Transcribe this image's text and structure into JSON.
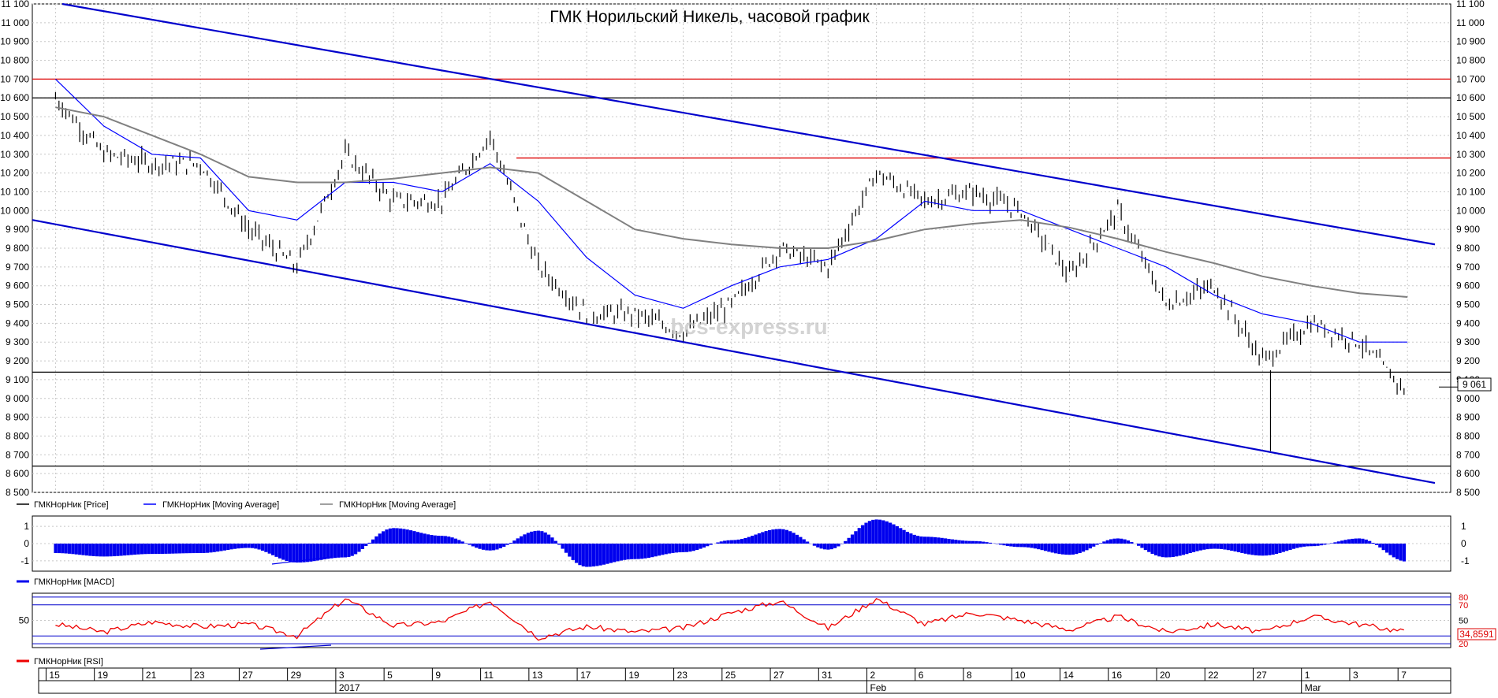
{
  "title": "ГМК Норильский Никель, часовой график",
  "watermark": "bcs-express.ru",
  "colors": {
    "price": "#000000",
    "ma_fast": "#0000ff",
    "ma_slow": "#808080",
    "channel": "#0000cc",
    "resistance": "#dd0000",
    "support": "#000000",
    "macd": "#0000ee",
    "rsi": "#ee0000",
    "rsi_levels": "#0000cc",
    "grid": "#c8c8c8",
    "frame": "#000000"
  },
  "price_panel": {
    "legend": [
      {
        "label": "ГМКНорНик [Price]",
        "color": "#000000"
      },
      {
        "label": "ГМКНорНик [Moving Average]",
        "color": "#0000ff"
      },
      {
        "label": "ГМКНорНик [Moving Average]",
        "color": "#808080"
      }
    ],
    "last_price_label": "9 061"
  },
  "macd_panel": {
    "legend": "ГМКНорНик [MACD]",
    "ticks": [
      "1",
      "0",
      "-1"
    ]
  },
  "rsi_panel": {
    "legend": "ГМКНорНик [RSI]",
    "ticks_left": [
      "50"
    ],
    "ticks_right": [
      "80",
      "70",
      "50",
      "30",
      "20"
    ],
    "last_value_label": "34,8591"
  },
  "date_axis": {
    "days": [
      "15",
      "19",
      "21",
      "23",
      "27",
      "29",
      "3",
      "5",
      "9",
      "11",
      "13",
      "17",
      "19",
      "23",
      "25",
      "27",
      "31",
      "2",
      "6",
      "8",
      "10",
      "14",
      "16",
      "20",
      "22",
      "27",
      "1",
      "3",
      "7"
    ],
    "months": [
      "2017",
      "Feb",
      "Mar"
    ]
  },
  "chart_data": [
    {
      "type": "line",
      "title": "ГМК Норильский Никель, часовой график",
      "ylim": [
        8500,
        11100
      ],
      "y_ticks": [
        8500,
        8600,
        8700,
        8800,
        8900,
        9000,
        9100,
        9200,
        9300,
        9400,
        9500,
        9600,
        9700,
        9800,
        9900,
        10000,
        10100,
        10200,
        10300,
        10400,
        10500,
        10600,
        10700,
        10800,
        10900,
        11000,
        11100
      ],
      "x_ticks": [
        "15",
        "19",
        "21",
        "23",
        "27",
        "29",
        "3",
        "5",
        "9",
        "11",
        "13",
        "17",
        "19",
        "23",
        "25",
        "27",
        "31",
        "2",
        "6",
        "8",
        "10",
        "14",
        "16",
        "20",
        "22",
        "27",
        "1",
        "3",
        "7"
      ],
      "grid": true,
      "legend_position": "bottom-left",
      "series": [
        {
          "name": "ГМКНорНик [Price]",
          "x": [
            "15",
            "19",
            "21",
            "23",
            "27",
            "29",
            "3",
            "5",
            "9",
            "11",
            "13",
            "17",
            "19",
            "23",
            "25",
            "27",
            "31",
            "2",
            "6",
            "8",
            "10",
            "14",
            "16",
            "20",
            "22",
            "27",
            "1",
            "3",
            "7"
          ],
          "values": [
            10600,
            10300,
            10250,
            10250,
            9900,
            9700,
            10300,
            10050,
            10050,
            10400,
            9700,
            9450,
            9450,
            9350,
            9500,
            9800,
            9700,
            10200,
            10050,
            10100,
            10000,
            9650,
            10000,
            9500,
            9600,
            9200,
            9400,
            9300,
            9030
          ]
        },
        {
          "name": "ГМКНорНик [Moving Average]",
          "x": [
            "15",
            "19",
            "21",
            "23",
            "27",
            "29",
            "3",
            "5",
            "9",
            "11",
            "13",
            "17",
            "19",
            "23",
            "25",
            "27",
            "31",
            "2",
            "6",
            "8",
            "10",
            "14",
            "16",
            "20",
            "22",
            "27",
            "1",
            "3",
            "7"
          ],
          "values": [
            10700,
            10450,
            10300,
            10280,
            10000,
            9950,
            10150,
            10150,
            10100,
            10250,
            10050,
            9750,
            9550,
            9480,
            9600,
            9700,
            9740,
            9850,
            10050,
            10000,
            10000,
            9900,
            9800,
            9700,
            9550,
            9450,
            9400,
            9300,
            9300
          ]
        },
        {
          "name": "ГМКНорНик [Moving Average]",
          "x": [
            "15",
            "19",
            "21",
            "23",
            "27",
            "29",
            "3",
            "5",
            "9",
            "11",
            "13",
            "17",
            "19",
            "23",
            "25",
            "27",
            "31",
            "2",
            "6",
            "8",
            "10",
            "14",
            "16",
            "20",
            "22",
            "27",
            "1",
            "3",
            "7"
          ],
          "values": [
            10550,
            10500,
            10400,
            10300,
            10180,
            10150,
            10150,
            10170,
            10200,
            10230,
            10200,
            10050,
            9900,
            9850,
            9820,
            9800,
            9800,
            9840,
            9900,
            9930,
            9950,
            9910,
            9850,
            9780,
            9720,
            9650,
            9600,
            9560,
            9540
          ]
        }
      ],
      "lines": [
        {
          "kind": "resistance",
          "price": 10700
        },
        {
          "kind": "resistance",
          "price": 10280
        },
        {
          "kind": "support",
          "price": 10600
        },
        {
          "kind": "support",
          "price": 9140
        },
        {
          "kind": "support",
          "price": 8640
        }
      ],
      "channel": {
        "upper": [
          [
            0,
            11100
          ],
          [
            1,
            9820
          ]
        ],
        "lower": [
          [
            0,
            9950
          ],
          [
            1,
            8550
          ]
        ]
      }
    },
    {
      "type": "area",
      "title": "ГМКНорНик [MACD]",
      "ylim": [
        -1.6,
        1.6
      ],
      "y_ticks": [
        1,
        0,
        -1
      ],
      "values": [
        -0.55,
        -0.75,
        -0.6,
        -0.55,
        -0.25,
        -1.1,
        -0.8,
        0.9,
        0.45,
        -0.4,
        0.75,
        -1.35,
        -0.9,
        -0.5,
        0.2,
        0.85,
        -0.35,
        1.4,
        0.4,
        0.15,
        -0.2,
        -0.65,
        0.3,
        -0.8,
        -0.3,
        -0.7,
        -0.15,
        0.3,
        -1.05
      ],
      "legend": "ГМКНорНик [MACD]"
    },
    {
      "type": "line",
      "title": "ГМКНорНик [RSI]",
      "ylim": [
        15,
        85
      ],
      "y_ticks": [
        20,
        30,
        50,
        70,
        80
      ],
      "values": [
        45,
        35,
        48,
        42,
        45,
        30,
        78,
        43,
        48,
        75,
        28,
        42,
        35,
        40,
        60,
        75,
        40,
        78,
        45,
        60,
        50,
        38,
        55,
        35,
        45,
        35,
        55,
        45,
        34.86
      ],
      "last_value": 34.8591,
      "legend": "ГМКНорНик [RSI]"
    }
  ]
}
